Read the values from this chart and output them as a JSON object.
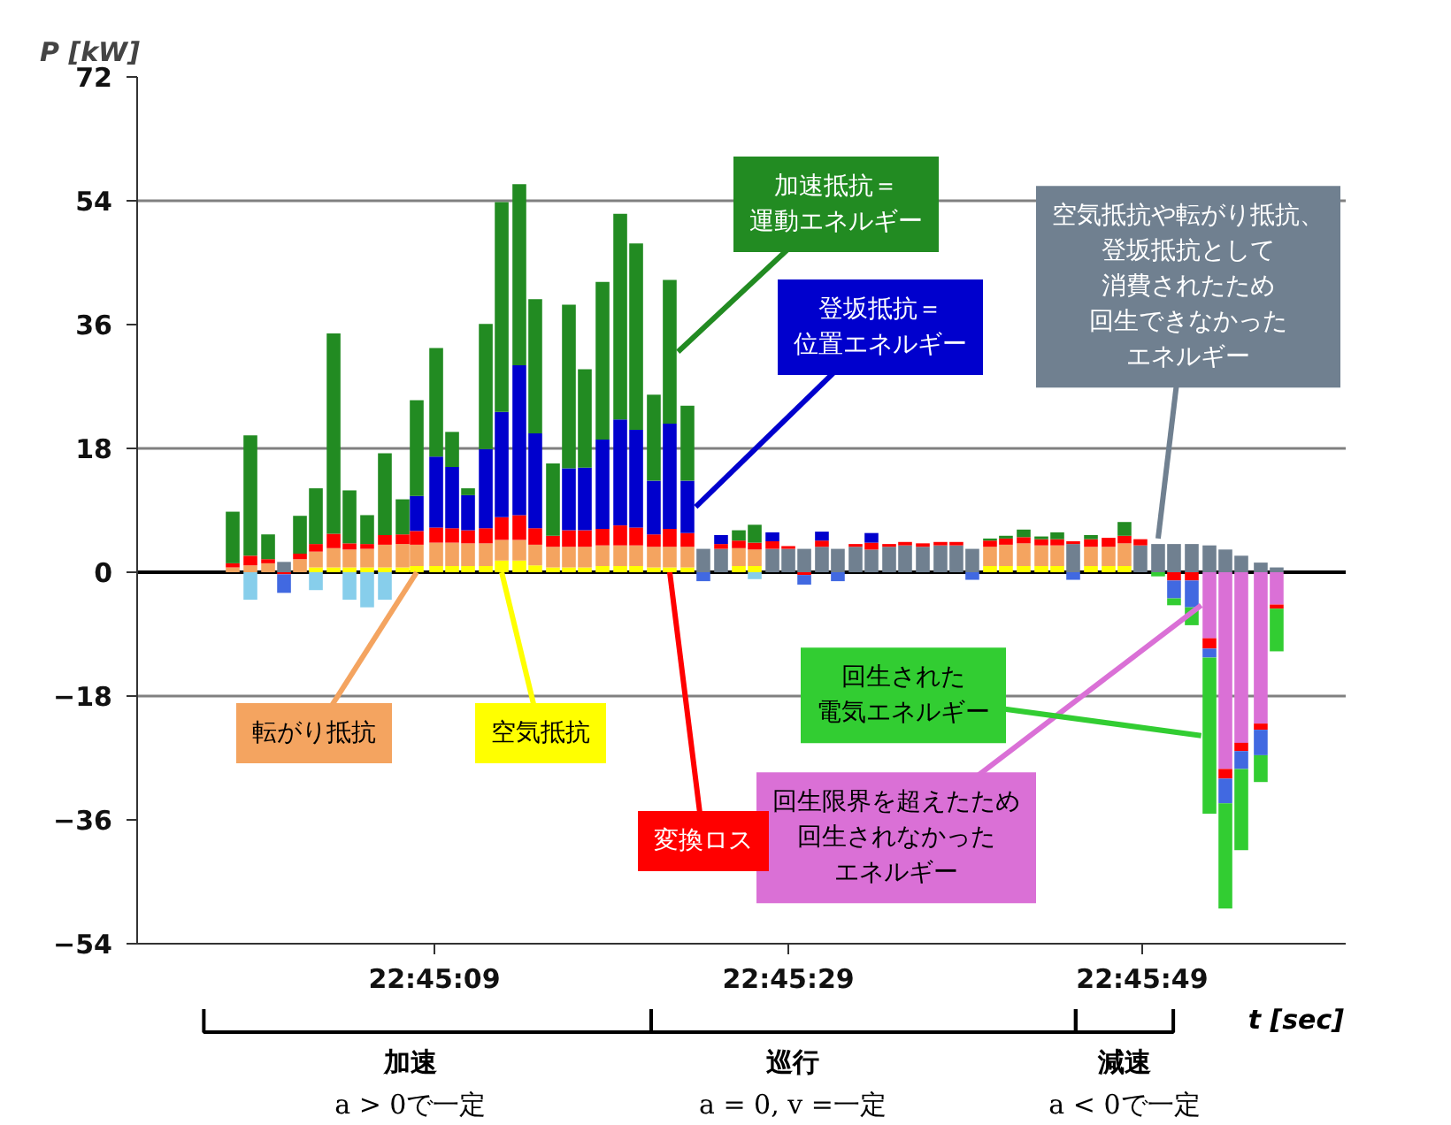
{
  "chart_data": {
    "type": "bar",
    "stacked": true,
    "xlabel": "t [sec]",
    "ylabel": "P [kW]",
    "x": [
      22.749333,
      22.749611,
      22.749889,
      22.750139,
      22.750389,
      22.750639,
      22.750917,
      22.751167,
      22.751444,
      22.751722,
      22.752,
      22.752222,
      22.752528,
      22.752778,
      22.753028,
      22.753306,
      22.753556,
      22.753833,
      22.754083,
      22.754361,
      22.754611,
      22.754861,
      22.755139,
      22.755417,
      22.755667,
      22.755944,
      22.756194,
      22.756472,
      22.756722,
      22.757,
      22.757278,
      22.757528,
      22.757806,
      22.758056,
      22.758306,
      22.758583,
      22.758833,
      22.759111,
      22.759361,
      22.759639,
      22.759889,
      22.760167,
      22.760444,
      22.760694,
      22.760944,
      22.761222,
      22.761472,
      22.76175,
      22.762028,
      22.762278,
      22.762528,
      22.762806,
      22.763083,
      22.763333,
      22.763583,
      22.763861,
      22.764111,
      22.764389,
      22.764667,
      22.764917,
      22.765167,
      22.765472,
      22.765722
    ],
    "xlim": [
      22.747833,
      22.766806
    ],
    "ylim": [
      -54,
      72
    ],
    "xticks": [
      {
        "value": 22.7525,
        "label": "22:45:09"
      },
      {
        "value": 22.758056,
        "label": "22:45:29"
      },
      {
        "value": 22.763611,
        "label": "22:45:49"
      }
    ],
    "yticks": [
      -54,
      -36,
      -18,
      0,
      18,
      36,
      54,
      72
    ],
    "ref_lines": [
      {
        "axis": "y",
        "value": 54,
        "label": null,
        "color": "#808080"
      },
      {
        "axis": "y",
        "value": 18,
        "label": null,
        "color": "#808080"
      },
      {
        "axis": "y",
        "value": 0,
        "label": null,
        "color": "#000000"
      },
      {
        "axis": "y",
        "value": -18,
        "label": null,
        "color": "#808080"
      }
    ],
    "series": [
      {
        "name": "空気抵抗や転がり抵抗、登坂抵抗として消費されたため回生できなかったエネルギー",
        "color": "#708090",
        "values": [
          null,
          null,
          null,
          1.5,
          null,
          null,
          null,
          null,
          null,
          null,
          null,
          null,
          null,
          null,
          null,
          null,
          null,
          null,
          null,
          null,
          null,
          null,
          null,
          null,
          null,
          null,
          null,
          null,
          3.4,
          3.4,
          null,
          null,
          3.4,
          3.4,
          3.4,
          3.7,
          3.4,
          3.7,
          3.3,
          3.7,
          3.9,
          3.7,
          3.9,
          3.9,
          3.4,
          null,
          null,
          null,
          null,
          null,
          4.1,
          null,
          null,
          null,
          3.9,
          4.1,
          4.1,
          4.1,
          3.9,
          3.3,
          2.4,
          1.4,
          0.7
        ]
      },
      {
        "name": "回生限界を超えたため回生されなかったエネルギー",
        "color": "#da70d6",
        "values": [
          null,
          null,
          null,
          null,
          null,
          null,
          null,
          null,
          null,
          null,
          null,
          null,
          null,
          null,
          null,
          null,
          null,
          null,
          null,
          null,
          null,
          null,
          null,
          null,
          null,
          null,
          null,
          null,
          null,
          null,
          null,
          null,
          null,
          null,
          null,
          null,
          null,
          null,
          null,
          null,
          null,
          null,
          null,
          null,
          null,
          null,
          null,
          null,
          null,
          null,
          null,
          null,
          null,
          null,
          null,
          null,
          null,
          null,
          -9.6,
          -28.6,
          -24.8,
          -22.0,
          -4.7
        ]
      },
      {
        "name": "空気抵抗",
        "color": "#ffff00",
        "values": [
          null,
          null,
          null,
          null,
          null,
          0.7,
          0.7,
          0.7,
          0.7,
          0.7,
          0.7,
          0.9,
          0.9,
          0.9,
          0.9,
          0.9,
          1.7,
          1.7,
          1.0,
          0.7,
          0.7,
          0.7,
          0.9,
          0.9,
          0.9,
          0.7,
          0.7,
          0.7,
          null,
          null,
          0.9,
          0.9,
          null,
          null,
          null,
          null,
          null,
          null,
          null,
          null,
          null,
          null,
          null,
          null,
          null,
          0.9,
          0.9,
          0.9,
          0.9,
          0.9,
          null,
          0.9,
          0.9,
          0.9,
          null,
          null,
          null,
          null,
          null,
          null,
          null,
          null,
          null
        ]
      },
      {
        "name": "転がり抵抗",
        "color": "#f4a460",
        "values": [
          0.7,
          1.0,
          1.3,
          null,
          1.9,
          2.3,
          2.8,
          2.6,
          2.7,
          3.3,
          3.4,
          3.1,
          3.4,
          3.4,
          3.3,
          3.3,
          3.0,
          3.0,
          3.0,
          3.0,
          3.0,
          3.0,
          3.0,
          3.0,
          3.0,
          3.0,
          3.0,
          3.0,
          null,
          null,
          2.6,
          2.4,
          null,
          null,
          null,
          null,
          null,
          null,
          null,
          null,
          null,
          null,
          null,
          null,
          null,
          2.8,
          3.1,
          3.3,
          3.0,
          3.0,
          null,
          2.8,
          2.8,
          3.3,
          null,
          null,
          null,
          null,
          null,
          null,
          null,
          null,
          null
        ]
      },
      {
        "name": "変換ロス",
        "color": "#ff0000",
        "values": [
          0.6,
          1.4,
          0.6,
          -0.3,
          0.8,
          1.1,
          2.1,
          0.9,
          0.7,
          1.4,
          1.4,
          2.0,
          2.2,
          2.1,
          1.9,
          2.2,
          3.3,
          3.6,
          2.4,
          1.6,
          2.4,
          2.4,
          2.4,
          2.9,
          2.6,
          1.8,
          2.6,
          2.0,
          null,
          0.7,
          1.1,
          1.0,
          1.1,
          0.4,
          -0.4,
          0.9,
          null,
          0.4,
          1.0,
          0.4,
          0.5,
          0.5,
          0.5,
          0.5,
          null,
          0.9,
          0.9,
          0.9,
          0.9,
          0.9,
          0.4,
          1.1,
          1.3,
          1.1,
          0.9,
          null,
          -1.2,
          -1.2,
          -1.5,
          -1.4,
          -1.2,
          -0.9,
          -0.6
        ]
      },
      {
        "name": "登坂抵抗＝位置エネルギー",
        "color": "#0000cd",
        "values": [
          null,
          null,
          null,
          null,
          null,
          null,
          null,
          null,
          null,
          null,
          null,
          5.1,
          10.3,
          8.9,
          5.1,
          11.5,
          15.3,
          21.8,
          13.8,
          null,
          9.0,
          9.1,
          13.0,
          15.4,
          14.2,
          7.8,
          15.3,
          7.6,
          null,
          1.3,
          null,
          null,
          1.3,
          null,
          null,
          1.3,
          null,
          null,
          1.4,
          null,
          null,
          null,
          null,
          null,
          null,
          null,
          null,
          null,
          null,
          null,
          null,
          null,
          null,
          null,
          null,
          null,
          null,
          null,
          null,
          null,
          null,
          null,
          null
        ]
      },
      {
        "color": "#4169e1",
        "values": [
          null,
          null,
          null,
          -2.7,
          null,
          null,
          null,
          null,
          null,
          null,
          null,
          null,
          null,
          null,
          null,
          null,
          null,
          null,
          null,
          null,
          null,
          null,
          null,
          null,
          null,
          null,
          null,
          null,
          -1.3,
          null,
          null,
          null,
          null,
          null,
          -1.4,
          null,
          -1.3,
          null,
          null,
          null,
          null,
          null,
          null,
          null,
          -1.1,
          null,
          null,
          null,
          null,
          null,
          -1.1,
          null,
          null,
          null,
          null,
          null,
          -2.6,
          -3.9,
          -1.3,
          -3.6,
          -2.6,
          -3.7,
          null
        ]
      },
      {
        "color": "#87ceeb",
        "values": [
          null,
          -4.0,
          null,
          null,
          null,
          -2.6,
          null,
          -4.0,
          -5.1,
          -4.0,
          null,
          null,
          null,
          null,
          null,
          null,
          null,
          null,
          null,
          null,
          null,
          null,
          null,
          null,
          null,
          null,
          null,
          null,
          null,
          null,
          null,
          -1.0,
          null,
          null,
          null,
          null,
          null,
          null,
          null,
          null,
          null,
          null,
          null,
          null,
          null,
          null,
          null,
          null,
          null,
          null,
          null,
          null,
          null,
          null,
          null,
          null,
          null,
          null,
          null,
          null,
          null,
          null,
          null
        ]
      },
      {
        "name": "加速抵抗＝運動エネルギー",
        "color": "#228b22",
        "values": [
          7.5,
          17.5,
          3.6,
          null,
          5.5,
          8.1,
          29.1,
          7.7,
          4.2,
          11.9,
          5.1,
          13.9,
          15.8,
          5.1,
          1.0,
          18.2,
          30.5,
          26.3,
          19.5,
          10.5,
          23.8,
          14.3,
          22.9,
          29.9,
          27.1,
          12.5,
          20.9,
          10.9,
          null,
          null,
          1.5,
          2.6,
          null,
          null,
          null,
          null,
          null,
          null,
          null,
          null,
          null,
          null,
          null,
          null,
          null,
          0.3,
          0.4,
          1.1,
          0.4,
          1.0,
          null,
          0.6,
          null,
          2.0,
          null,
          null,
          null,
          null,
          null,
          null,
          null,
          null,
          null
        ]
      },
      {
        "name": "回生された電気エネルギー",
        "color": "#32cd32",
        "values": [
          null,
          null,
          null,
          null,
          null,
          null,
          null,
          null,
          null,
          null,
          null,
          null,
          null,
          null,
          null,
          null,
          null,
          null,
          null,
          null,
          null,
          null,
          null,
          null,
          null,
          null,
          null,
          null,
          null,
          null,
          null,
          null,
          null,
          null,
          null,
          null,
          null,
          null,
          null,
          null,
          null,
          null,
          null,
          null,
          null,
          null,
          null,
          null,
          null,
          null,
          null,
          null,
          null,
          null,
          null,
          -0.6,
          -1.0,
          -2.6,
          -22.7,
          -15.3,
          -11.8,
          -3.9,
          -6.2
        ]
      }
    ],
    "annotations": [
      "加速",
      "a > 0で一定",
      "巡行",
      "a = 0, v =一定",
      "減速",
      "a < 0で一定"
    ]
  }
}
